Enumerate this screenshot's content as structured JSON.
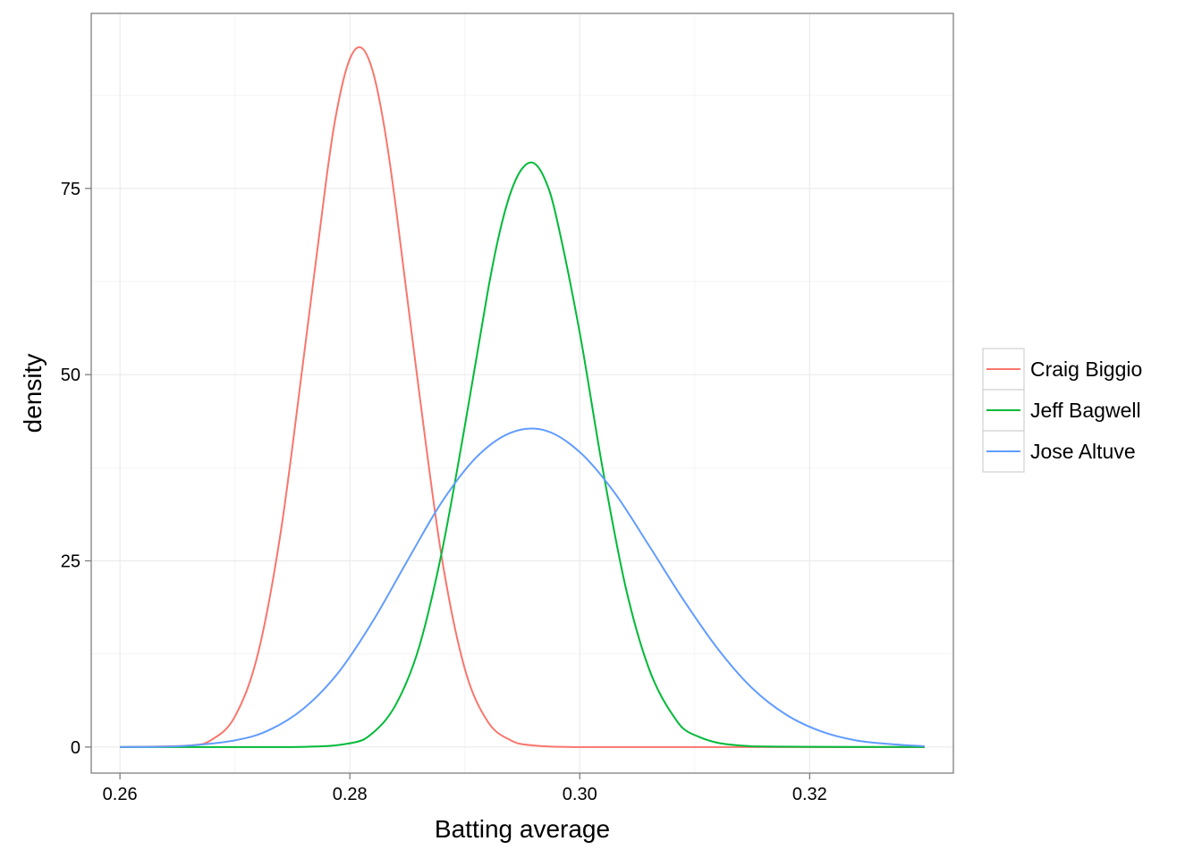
{
  "chart_data": {
    "type": "line",
    "xlabel": "Batting average",
    "ylabel": "density",
    "xlim": [
      0.2575,
      0.3325
    ],
    "ylim": [
      -3.5,
      98.5
    ],
    "xticks": [
      {
        "value": 0.26,
        "label": "0.26"
      },
      {
        "value": 0.28,
        "label": "0.28"
      },
      {
        "value": 0.3,
        "label": "0.30"
      },
      {
        "value": 0.32,
        "label": "0.32"
      }
    ],
    "yticks": [
      {
        "value": 0,
        "label": "0"
      },
      {
        "value": 25,
        "label": "25"
      },
      {
        "value": 50,
        "label": "50"
      },
      {
        "value": 75,
        "label": "75"
      }
    ],
    "grid": true,
    "legend_position": "right",
    "series": [
      {
        "name": "Craig Biggio",
        "color": "#F8766D",
        "x": [
          0.26,
          0.266,
          0.268,
          0.27,
          0.272,
          0.274,
          0.276,
          0.278,
          0.279,
          0.28,
          0.281,
          0.282,
          0.283,
          0.284,
          0.286,
          0.288,
          0.29,
          0.292,
          0.294,
          0.296,
          0.3,
          0.31,
          0.33
        ],
        "y": [
          0,
          0.2,
          1.0,
          4.1,
          12.5,
          29.0,
          52.5,
          76.8,
          86.5,
          92.4,
          93.9,
          90.7,
          83.2,
          72.5,
          48.0,
          25.4,
          10.5,
          3.4,
          0.9,
          0.2,
          0,
          0,
          0
        ]
      },
      {
        "name": "Jeff Bagwell",
        "color": "#00BA38",
        "x": [
          0.26,
          0.275,
          0.28,
          0.282,
          0.284,
          0.286,
          0.288,
          0.29,
          0.292,
          0.293,
          0.294,
          0.295,
          0.296,
          0.297,
          0.298,
          0.3,
          0.302,
          0.304,
          0.306,
          0.308,
          0.31,
          0.315,
          0.33
        ],
        "y": [
          0,
          0,
          0.5,
          1.9,
          5.7,
          13.3,
          26.2,
          43.1,
          61.2,
          68.9,
          74.5,
          77.7,
          78.4,
          76.1,
          70.9,
          55.6,
          37.3,
          21.4,
          10.6,
          4.5,
          1.6,
          0.1,
          0
        ]
      },
      {
        "name": "Jose Altuve",
        "color": "#619CFF",
        "x": [
          0.26,
          0.265,
          0.27,
          0.273,
          0.276,
          0.279,
          0.282,
          0.285,
          0.288,
          0.291,
          0.294,
          0.297,
          0.3,
          0.303,
          0.306,
          0.309,
          0.312,
          0.315,
          0.318,
          0.321,
          0.324,
          0.327,
          0.33
        ],
        "y": [
          0,
          0.1,
          0.9,
          2.3,
          5.2,
          10.0,
          16.9,
          25.0,
          32.9,
          38.9,
          42.2,
          42.5,
          39.6,
          34.2,
          27.1,
          19.8,
          13.2,
          7.9,
          4.3,
          2.1,
          0.9,
          0.4,
          0.1
        ]
      }
    ]
  }
}
